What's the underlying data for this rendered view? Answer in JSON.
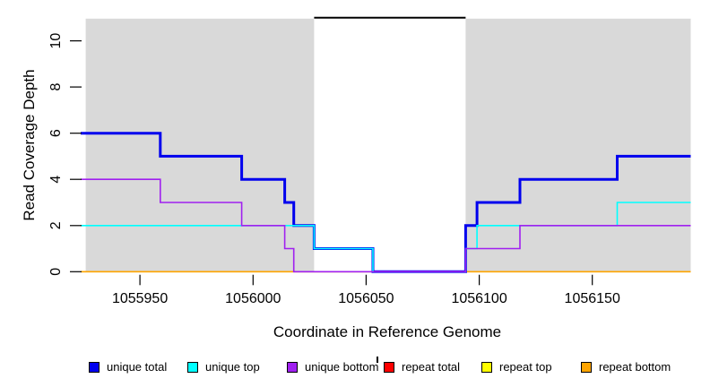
{
  "x_axis": {
    "label": "Coordinate in Reference Genome",
    "ticks": [
      1055950,
      1056000,
      1056050,
      1056100,
      1056150
    ]
  },
  "y_axis": {
    "label": "Read Coverage Depth",
    "ticks": [
      0,
      2,
      4,
      6,
      8,
      10
    ]
  },
  "legend": {
    "items": [
      {
        "label": "unique total",
        "color": "#0000EE"
      },
      {
        "label": "unique top",
        "color": "#00FFFF"
      },
      {
        "label": "unique bottom",
        "color": "#A020F0"
      },
      {
        "label": "repeat total",
        "color": "#FF0000"
      },
      {
        "label": "repeat top",
        "color": "#FFFF00"
      },
      {
        "label": "repeat bottom",
        "color": "#FFA500"
      }
    ]
  },
  "chart_data": {
    "type": "line",
    "subtype": "step",
    "title": "",
    "xlabel": "Coordinate in Reference Genome",
    "ylabel": "Read Coverage Depth",
    "x_range": [
      1055923.8,
      1056193.5
    ],
    "y_range": [
      0,
      11
    ],
    "grid": false,
    "region_color": "#D9D9D9",
    "shaded_regions": [
      [
        1055926,
        1056027
      ],
      [
        1056094,
        1056193.5
      ]
    ],
    "white_gap_region": [
      1056027,
      1056094
    ],
    "series": [
      {
        "name": "repeat bottom",
        "color": "#FFA500",
        "width": 1.6,
        "steps": [
          [
            1055923.8,
            0
          ]
        ]
      },
      {
        "name": "repeat top",
        "color": "#FFFF00",
        "width": 1.6,
        "steps": []
      },
      {
        "name": "repeat total",
        "color": "#FF0000",
        "width": 1.6,
        "steps": []
      },
      {
        "name": "unique total",
        "color": "#0000EE",
        "width": 3,
        "steps": [
          [
            1055923.8,
            6
          ],
          [
            1055959,
            5
          ],
          [
            1055995,
            4
          ],
          [
            1056014,
            3
          ],
          [
            1056018,
            2
          ],
          [
            1056027,
            1
          ],
          [
            1056053,
            0
          ],
          [
            1056094,
            2
          ],
          [
            1056099,
            3
          ],
          [
            1056118,
            4
          ],
          [
            1056161,
            5
          ]
        ]
      },
      {
        "name": "unique top",
        "color": "#00FFFF",
        "width": 1.6,
        "steps": [
          [
            1055923.8,
            2
          ],
          [
            1056027,
            1
          ],
          [
            1056053,
            0
          ],
          [
            1056094,
            1
          ],
          [
            1056099,
            2
          ],
          [
            1056161,
            3
          ]
        ]
      },
      {
        "name": "unique bottom",
        "color": "#A020F0",
        "width": 1.6,
        "steps": [
          [
            1055923.8,
            4
          ],
          [
            1055959,
            3
          ],
          [
            1055995,
            2
          ],
          [
            1056014,
            1
          ],
          [
            1056018,
            0
          ],
          [
            1056094,
            1
          ],
          [
            1056118,
            2
          ]
        ]
      }
    ],
    "black_line": {
      "y": 11,
      "x_from": 1056027,
      "x_to": 1056094,
      "color": "#000000",
      "width": 2
    }
  }
}
